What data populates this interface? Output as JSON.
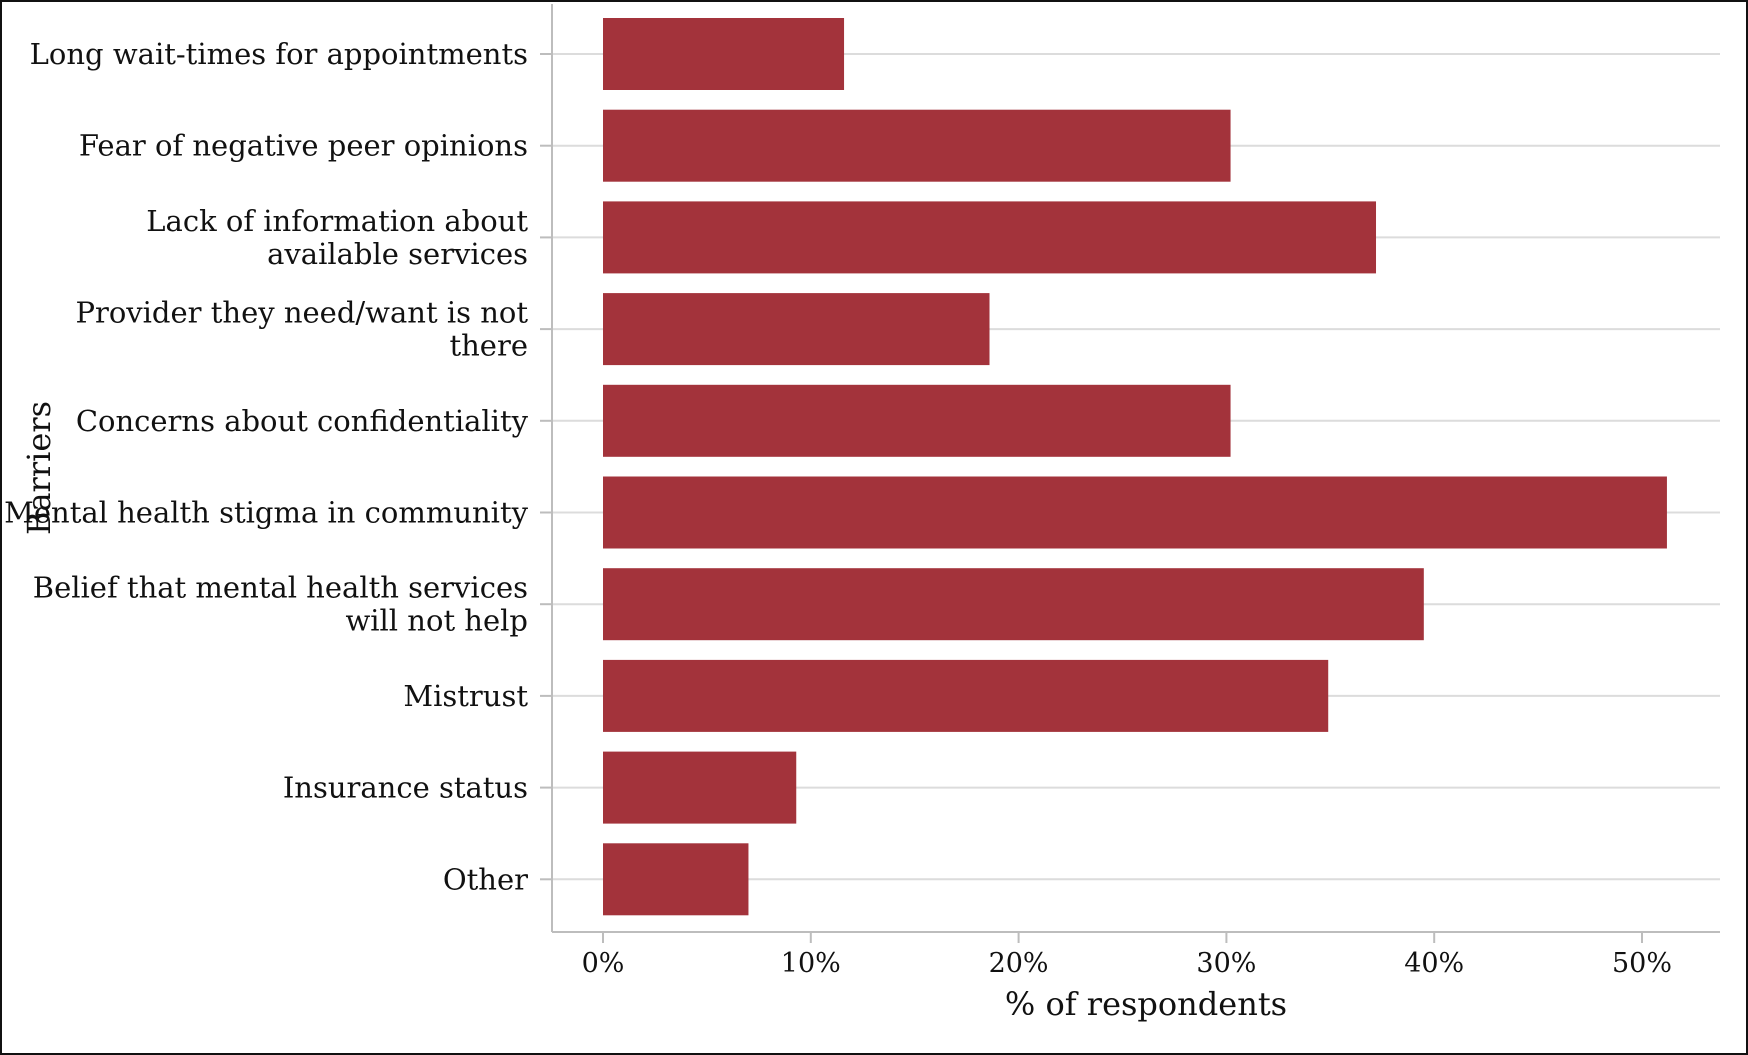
{
  "chart_data": {
    "type": "bar",
    "orientation": "horizontal",
    "categories": [
      "Long wait-times for appointments",
      "Fear of negative peer opinions",
      "Lack of information about available services",
      "Provider they need/want is not there",
      "Concerns about confidentiality",
      "Mental health stigma in community",
      "Belief that mental health services will not help",
      "Mistrust",
      "Insurance status",
      "Other"
    ],
    "category_label_lines": [
      [
        "Long wait-times for appointments"
      ],
      [
        "Fear of negative peer opinions"
      ],
      [
        "Lack of information about",
        "available services"
      ],
      [
        "Provider they need/want is not",
        "there"
      ],
      [
        "Concerns about confidentiality"
      ],
      [
        "Mental health stigma in community"
      ],
      [
        "Belief that mental health services",
        "will not help"
      ],
      [
        "Mistrust"
      ],
      [
        "Insurance status"
      ],
      [
        "Other"
      ]
    ],
    "values": [
      11.6,
      30.2,
      37.2,
      18.6,
      30.2,
      51.2,
      39.5,
      34.9,
      9.3,
      7.0
    ],
    "xlabel": "% of respondents",
    "ylabel": "Barriers",
    "xlim": [
      0,
      53
    ],
    "xticks": [
      0,
      10,
      20,
      30,
      40,
      50
    ],
    "xtick_labels": [
      "0%",
      "10%",
      "20%",
      "30%",
      "40%",
      "50%"
    ],
    "grid": "horizontal",
    "bar_color": "#a3333b",
    "grid_color": "#dcdcdc",
    "axis_color": "#bdbdbd"
  }
}
